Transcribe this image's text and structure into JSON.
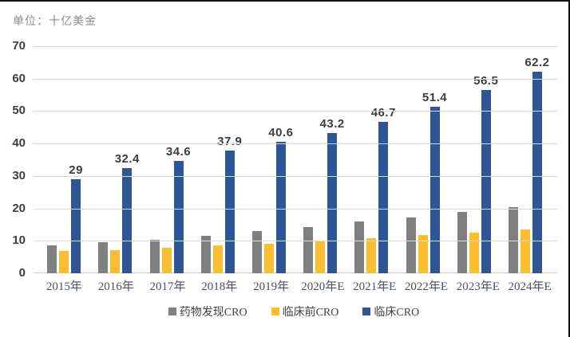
{
  "unit_label": "单位：十亿美金",
  "chart_data": {
    "type": "bar",
    "title": "",
    "xlabel": "",
    "ylabel": "单位：十亿美金",
    "ylim": [
      0,
      70
    ],
    "y_ticks": [
      0,
      10,
      20,
      30,
      40,
      50,
      60,
      70
    ],
    "grid": "horizontal",
    "legend_position": "bottom",
    "categories": [
      "2015年",
      "2016年",
      "2017年",
      "2018年",
      "2019年",
      "2020年E",
      "2021年E",
      "2022年E",
      "2023年E",
      "2024年E"
    ],
    "series": [
      {
        "id": "drug-discovery-cro",
        "name": "药物发现CRO",
        "color": "#808080",
        "values": [
          8.5,
          9.5,
          10.3,
          11.6,
          12.9,
          14.3,
          16.0,
          17.2,
          18.8,
          20.5
        ]
      },
      {
        "id": "preclinical-cro",
        "name": "临床前CRO",
        "color": "#FBBE2E",
        "values": [
          6.8,
          7.2,
          7.8,
          8.6,
          9.1,
          9.8,
          10.8,
          11.8,
          12.5,
          13.6
        ]
      },
      {
        "id": "clinical-cro",
        "name": "临床CRO",
        "color": "#2F5597",
        "values": [
          29,
          32.4,
          34.6,
          37.9,
          40.6,
          43.2,
          46.7,
          51.4,
          56.5,
          62.2
        ],
        "data_labels": [
          "29",
          "32.4",
          "34.6",
          "37.9",
          "40.6",
          "43.2",
          "46.7",
          "51.4",
          "56.5",
          "62.2"
        ]
      }
    ]
  }
}
